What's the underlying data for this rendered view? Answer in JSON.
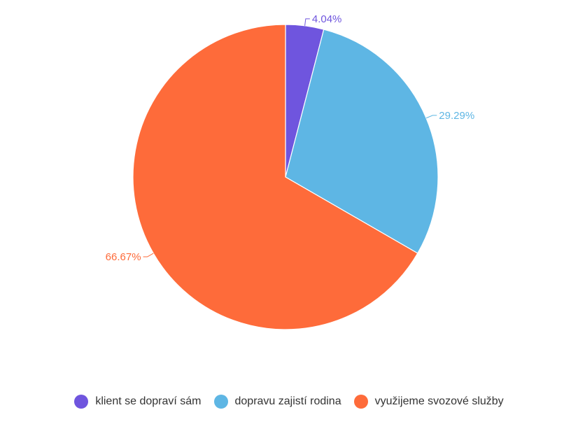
{
  "chart_data": {
    "type": "pie",
    "title": "",
    "start_angle_deg": 0,
    "direction": "clockwise",
    "legend_position": "bottom",
    "slices": [
      {
        "label": "klient se dopraví sám",
        "value": 4.04,
        "value_label": "4.04%",
        "color": "#6f55de"
      },
      {
        "label": "dopravu zajistí rodina",
        "value": 29.29,
        "value_label": "29.29%",
        "color": "#5eb6e4"
      },
      {
        "label": "využijeme svozové služby",
        "value": 66.67,
        "value_label": "66.67%",
        "color": "#fe6b3a"
      }
    ]
  }
}
